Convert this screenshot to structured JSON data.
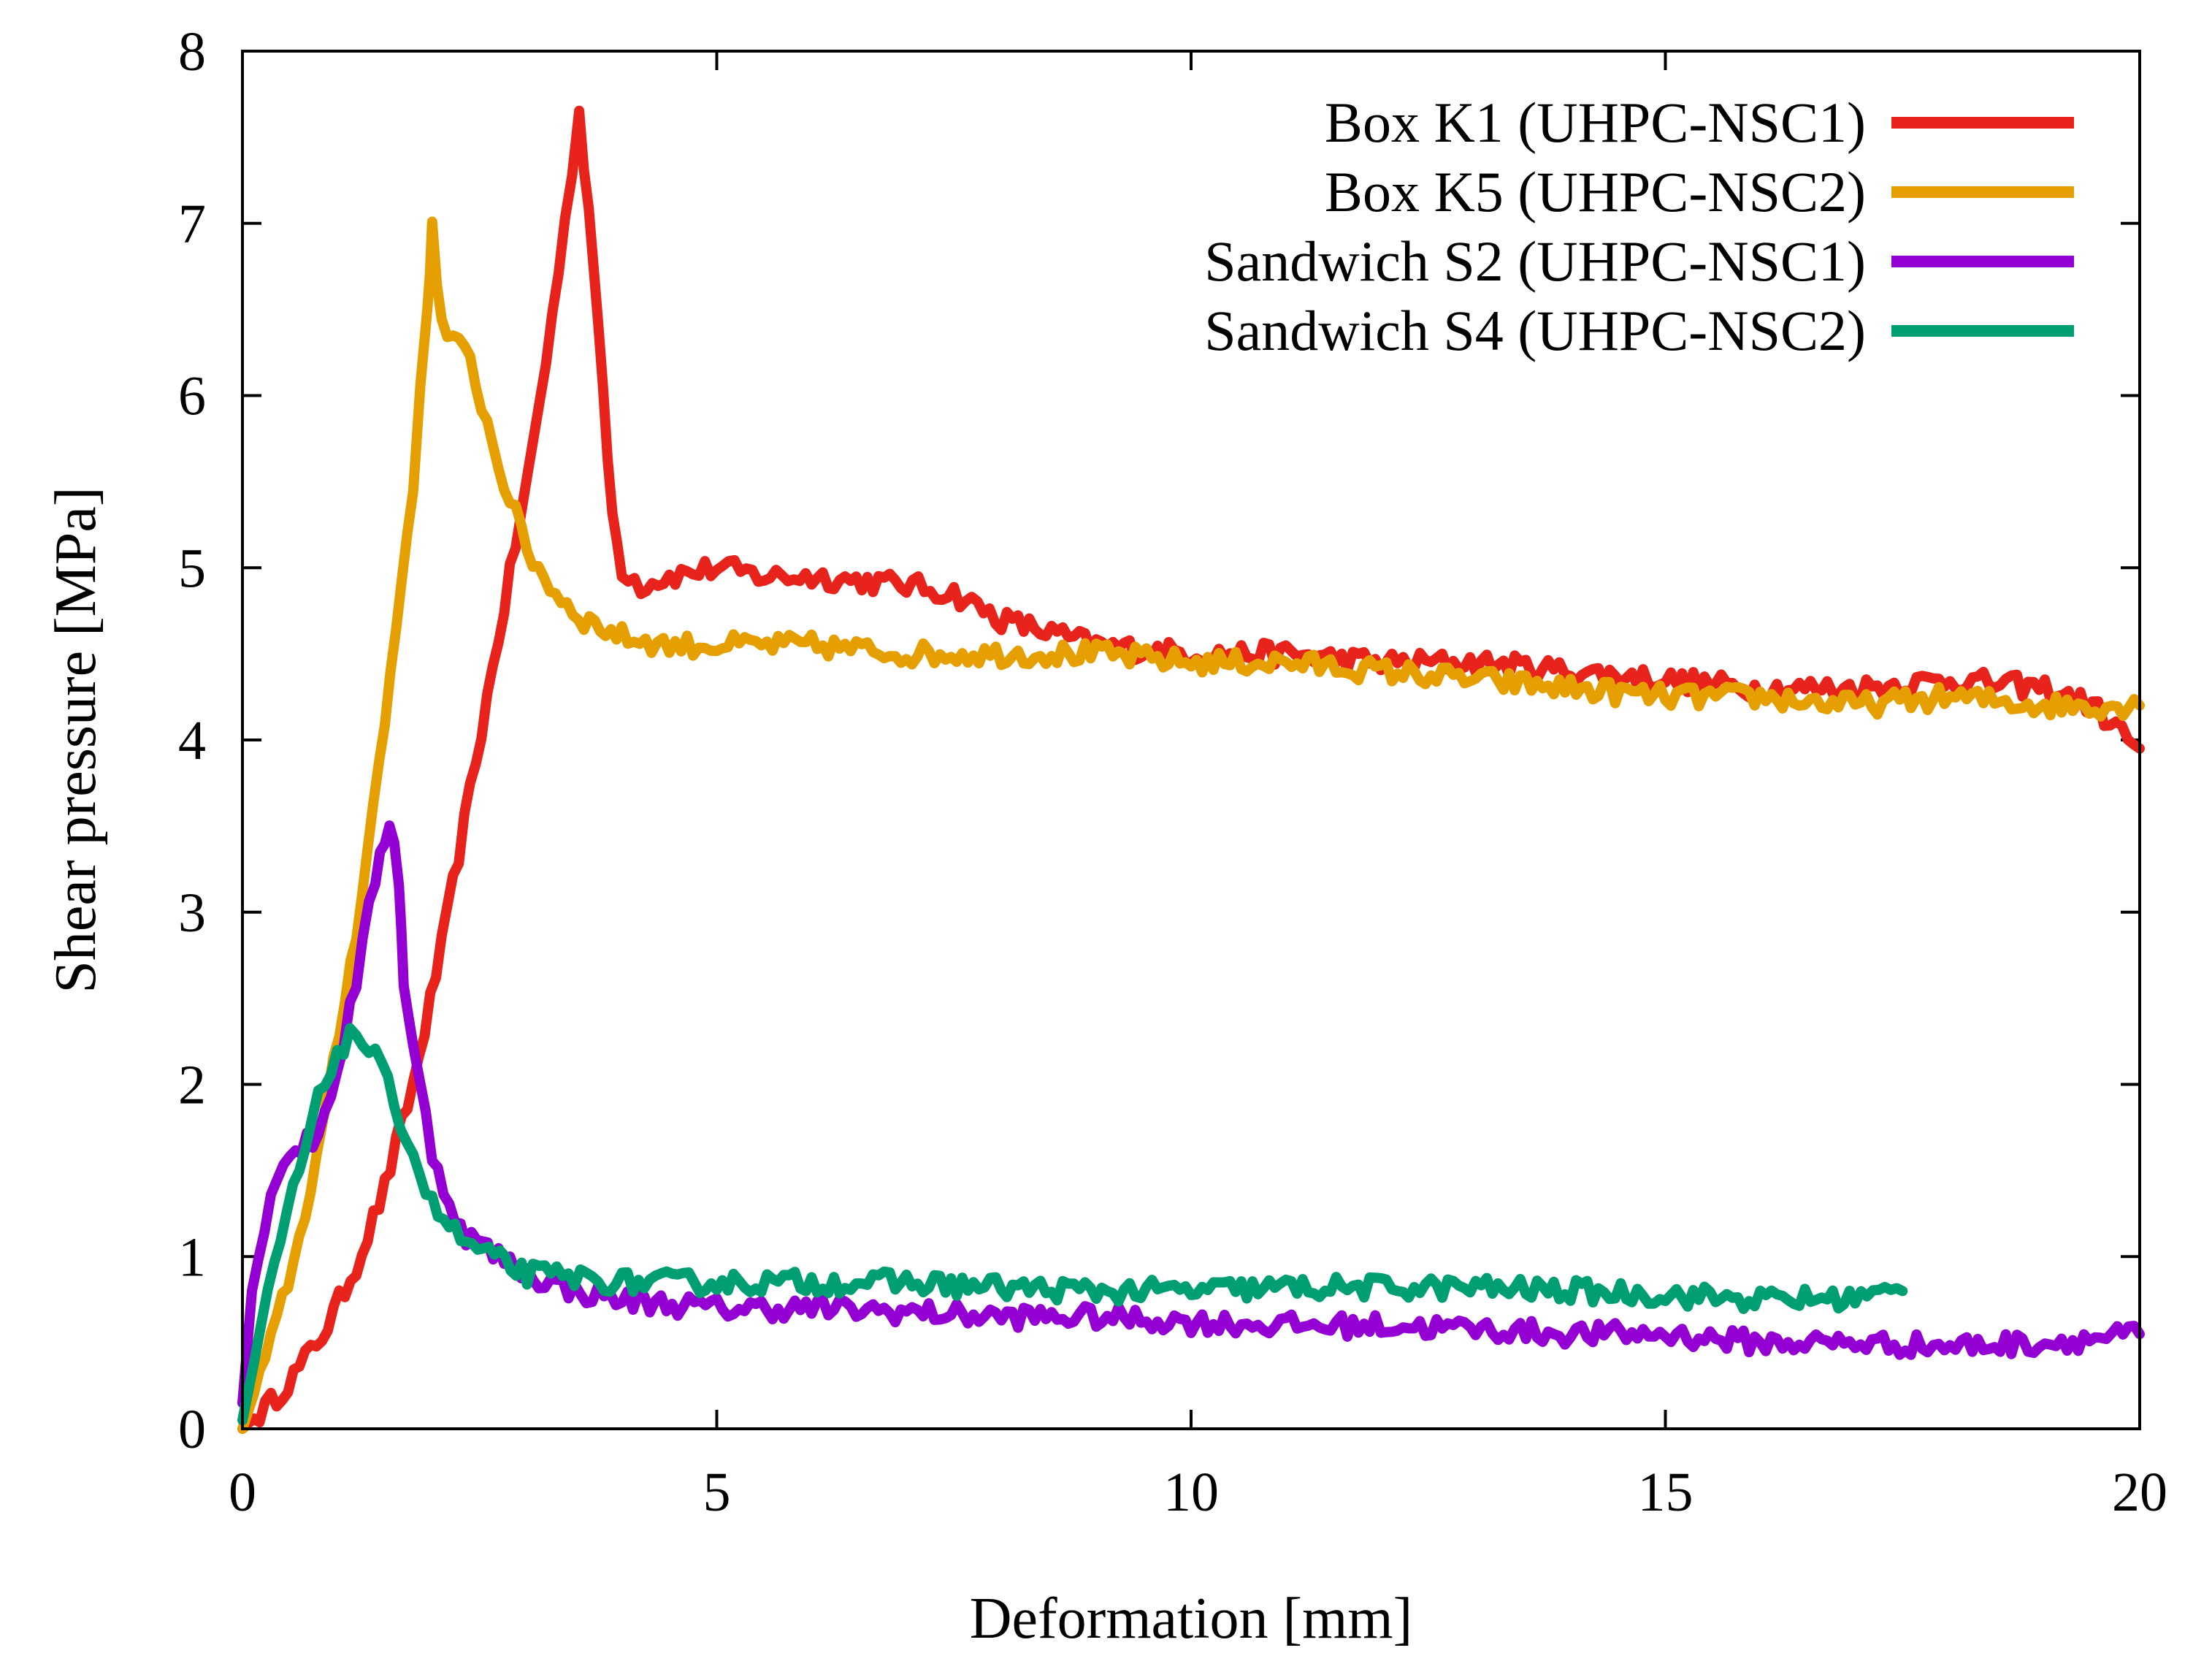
{
  "chart_data": {
    "type": "line",
    "title": "",
    "xlabel": "Deformation [mm]",
    "ylabel": "Shear pressure [MPa]",
    "xlim": [
      0,
      20
    ],
    "ylim": [
      0,
      8
    ],
    "xticks": [
      0,
      5,
      10,
      15,
      20
    ],
    "yticks": [
      0,
      1,
      2,
      3,
      4,
      5,
      6,
      7,
      8
    ],
    "grid": false,
    "legend_position": "top-right",
    "series": [
      {
        "name": "Box K1 (UHPC-NSC1)",
        "color": "#e8231b",
        "x": [
          0,
          0.3,
          0.6,
          0.9,
          1.2,
          1.5,
          1.8,
          2.1,
          2.4,
          2.7,
          3.0,
          3.2,
          3.4,
          3.55,
          3.7,
          3.8,
          3.9,
          4.0,
          4.2,
          4.5,
          5.0,
          5.5,
          6.0,
          7.0,
          7.5,
          8.0,
          9.0,
          10.0,
          11.0,
          12.0,
          13.0,
          14.0,
          15.0,
          16.0,
          17.0,
          18.0,
          19.0,
          19.5,
          20.0
        ],
        "y": [
          0.0,
          0.15,
          0.35,
          0.6,
          0.95,
          1.4,
          2.0,
          2.8,
          3.7,
          4.6,
          5.5,
          6.2,
          7.0,
          7.65,
          6.8,
          6.0,
          5.3,
          5.0,
          4.9,
          4.95,
          5.0,
          4.95,
          4.95,
          4.9,
          4.85,
          4.7,
          4.55,
          4.5,
          4.5,
          4.45,
          4.45,
          4.4,
          4.35,
          4.3,
          4.3,
          4.35,
          4.3,
          4.2,
          3.95
        ]
      },
      {
        "name": "Box K5 (UHPC-NSC2)",
        "color": "#e69f00",
        "x": [
          0,
          0.3,
          0.6,
          0.9,
          1.2,
          1.5,
          1.8,
          1.95,
          2.0,
          2.1,
          2.4,
          2.7,
          3.0,
          3.3,
          3.6,
          4.0,
          4.5,
          5.0,
          6.0,
          7.0,
          8.0,
          9.0,
          10.0,
          11.0,
          12.0,
          13.0,
          14.0,
          15.0,
          16.0,
          17.0,
          18.0,
          19.0,
          20.0
        ],
        "y": [
          0.0,
          0.5,
          1.1,
          1.9,
          2.9,
          4.1,
          5.5,
          6.5,
          7.0,
          6.4,
          6.2,
          5.6,
          5.1,
          4.85,
          4.7,
          4.6,
          4.55,
          4.55,
          4.55,
          4.5,
          4.5,
          4.5,
          4.45,
          4.45,
          4.4,
          4.35,
          4.3,
          4.25,
          4.25,
          4.2,
          4.25,
          4.2,
          4.2
        ]
      },
      {
        "name": "Sandwich S2 (UHPC-NSC1)",
        "color": "#9400d3",
        "x": [
          0,
          0.1,
          0.3,
          0.5,
          0.8,
          1.0,
          1.2,
          1.4,
          1.55,
          1.65,
          1.7,
          1.8,
          2.0,
          2.3,
          2.7,
          3.0,
          3.5,
          4.0,
          5.0,
          6.0,
          7.0,
          8.0,
          9.0,
          10.0,
          11.0,
          12.0,
          13.0,
          14.0,
          15.0,
          16.0,
          17.0,
          18.0,
          19.0,
          20.0
        ],
        "y": [
          0.15,
          0.8,
          1.4,
          1.6,
          1.7,
          2.1,
          2.6,
          3.2,
          3.55,
          3.2,
          2.6,
          2.2,
          1.6,
          1.15,
          1.0,
          0.9,
          0.8,
          0.75,
          0.7,
          0.7,
          0.68,
          0.65,
          0.65,
          0.62,
          0.6,
          0.6,
          0.58,
          0.55,
          0.55,
          0.5,
          0.5,
          0.48,
          0.5,
          0.55
        ]
      },
      {
        "name": "Sandwich S4 (UHPC-NSC2)",
        "color": "#009e73",
        "x": [
          0,
          0.2,
          0.4,
          0.6,
          0.8,
          1.0,
          1.2,
          1.4,
          1.6,
          1.8,
          2.0,
          2.3,
          2.6,
          3.0,
          3.5,
          4.0,
          5.0,
          6.0,
          7.0,
          8.0,
          9.0,
          10.0,
          11.0,
          12.0,
          13.0,
          14.0,
          15.0,
          16.0,
          17.0,
          17.5
        ],
        "y": [
          0.05,
          0.6,
          1.1,
          1.5,
          1.9,
          2.2,
          2.3,
          2.15,
          1.9,
          1.6,
          1.3,
          1.1,
          1.0,
          0.9,
          0.88,
          0.85,
          0.85,
          0.85,
          0.85,
          0.82,
          0.8,
          0.8,
          0.82,
          0.82,
          0.82,
          0.8,
          0.78,
          0.75,
          0.76,
          0.8
        ]
      }
    ]
  }
}
